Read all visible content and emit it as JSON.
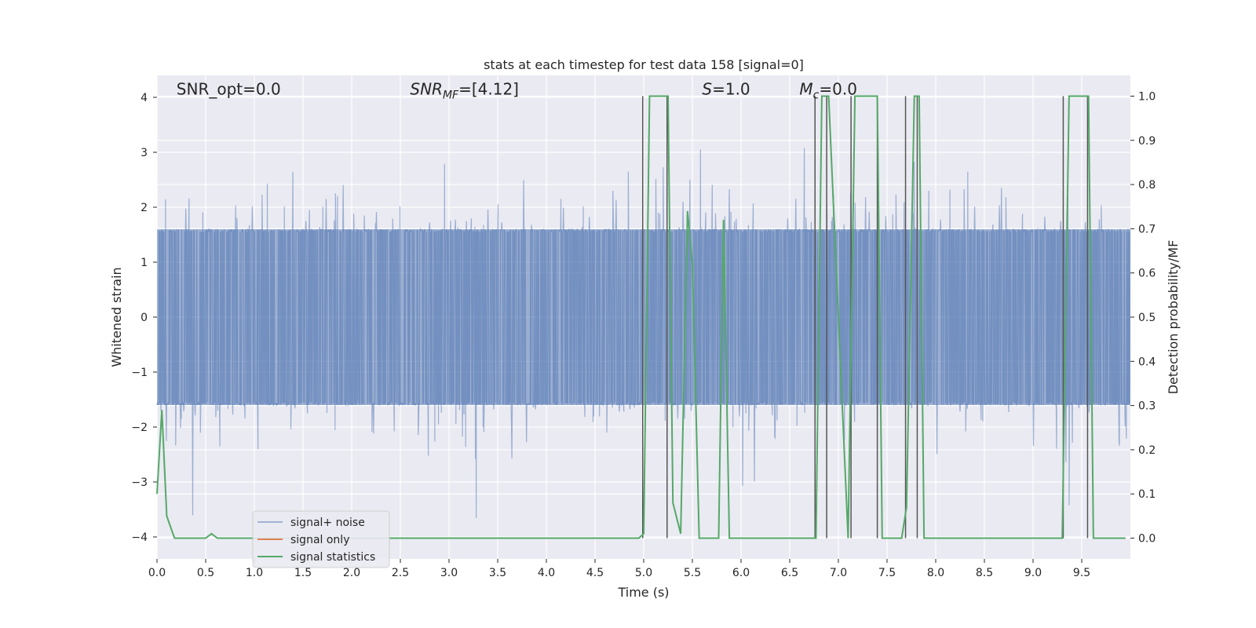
{
  "chart_data": {
    "type": "line",
    "title": "stats at each timestep for test data 158 [signal=0]",
    "xlabel": "Time (s)",
    "ylabel": "Whitened strain",
    "y2label": "Detection probability/MF",
    "xlim": [
      0.0,
      10.0
    ],
    "ylim": [
      -4.4,
      4.4
    ],
    "y2lim": [
      -0.047,
      1.047
    ],
    "x_ticks": [
      0.0,
      0.5,
      1.0,
      1.5,
      2.0,
      2.5,
      3.0,
      3.5,
      4.0,
      4.5,
      5.0,
      5.5,
      6.0,
      6.5,
      7.0,
      7.5,
      8.0,
      8.5,
      9.0,
      9.5
    ],
    "x_tick_labels": [
      "0.0",
      "0.5",
      "1.0",
      "1.5",
      "2.0",
      "2.5",
      "3.0",
      "3.5",
      "4.0",
      "4.5",
      "5.0",
      "5.5",
      "6.0",
      "6.5",
      "7.0",
      "7.5",
      "8.0",
      "8.5",
      "9.0",
      "9.5"
    ],
    "y_ticks": [
      -4,
      -3,
      -2,
      -1,
      0,
      1,
      2,
      3,
      4
    ],
    "y_tick_labels": [
      "−4",
      "−3",
      "−2",
      "−1",
      "0",
      "1",
      "2",
      "3",
      "4"
    ],
    "y2_ticks": [
      0.0,
      0.1,
      0.2,
      0.3,
      0.4,
      0.5,
      0.6,
      0.7,
      0.8,
      0.9,
      1.0
    ],
    "y2_tick_labels": [
      "0.0",
      "0.1",
      "0.2",
      "0.3",
      "0.4",
      "0.5",
      "0.6",
      "0.7",
      "0.8",
      "0.9",
      "1.0"
    ],
    "grid": true,
    "legend_position": "lower-left",
    "annotations": [
      {
        "text": "SNR_opt=0.0",
        "x": 0.2,
        "y": 4.15
      },
      {
        "text": "SNR_MF=[4.12]",
        "x": 2.6,
        "y": 4.15
      },
      {
        "text": "S=1.0",
        "x": 5.6,
        "y": 4.15
      },
      {
        "text": "M_c=0.0",
        "x": 6.6,
        "y": 4.15
      }
    ],
    "series": [
      {
        "name": "signal+ noise",
        "axis": "left",
        "color": "#4c72b0",
        "kind": "noise",
        "sample_rate": 240,
        "core_amplitude": 1.6,
        "tail_max": 4.0
      },
      {
        "name": "signal only",
        "axis": "left",
        "color": "#dd8452",
        "x": [
          0.0,
          10.0
        ],
        "y": [
          0.0,
          0.0
        ]
      },
      {
        "name": "signal statistics",
        "axis": "right",
        "color": "#55a868",
        "x": [
          0.0,
          0.05,
          0.1,
          0.18,
          0.5,
          0.56,
          0.62,
          4.95,
          5.0,
          5.06,
          5.25,
          5.3,
          5.38,
          5.45,
          5.5,
          5.57,
          5.77,
          5.82,
          5.88,
          6.77,
          6.83,
          6.9,
          7.1,
          7.17,
          7.4,
          7.45,
          7.65,
          7.7,
          7.78,
          7.83,
          7.88,
          9.3,
          9.37,
          9.57,
          9.62,
          9.95
        ],
        "y": [
          0.1,
          0.29,
          0.05,
          0.0,
          0.0,
          0.01,
          0.0,
          0.0,
          0.01,
          1.0,
          1.0,
          0.08,
          0.01,
          0.74,
          0.62,
          0.0,
          0.0,
          0.72,
          0.0,
          0.0,
          1.0,
          1.0,
          0.0,
          1.0,
          1.0,
          0.0,
          0.0,
          0.07,
          1.0,
          1.0,
          0.0,
          0.0,
          1.0,
          1.0,
          0.0,
          0.0
        ]
      }
    ],
    "vlines": {
      "color": "#555555",
      "ymin_frac": 0.0,
      "ymax_frac": 1.0,
      "x": [
        4.99,
        5.24,
        6.76,
        6.88,
        7.13,
        7.4,
        7.69,
        7.81,
        9.31,
        9.56
      ]
    }
  }
}
